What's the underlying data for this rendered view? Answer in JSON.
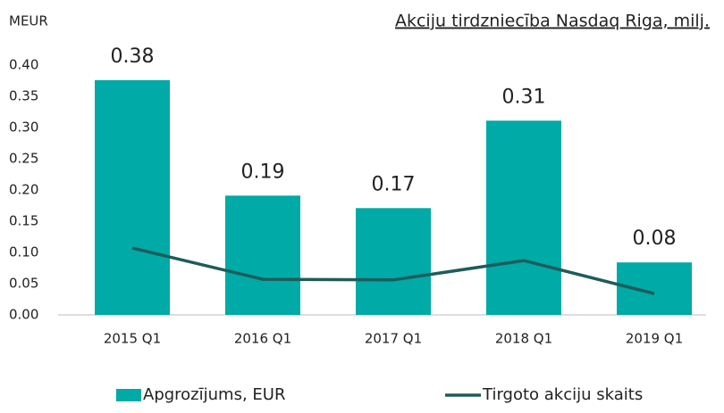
{
  "chart_data": {
    "type": "bar",
    "title": "Akciju tirdzniecība Nasdaq Riga, milj.",
    "y_label": "MEUR",
    "categories": [
      "2015 Q1",
      "2016 Q1",
      "2017 Q1",
      "2018 Q1",
      "2019 Q1"
    ],
    "series": [
      {
        "name": "Apgrozījums, EUR",
        "type": "bar",
        "color": "#00aaa6",
        "values": [
          0.376,
          0.191,
          0.171,
          0.311,
          0.084
        ],
        "value_labels": [
          "0.38",
          "0.19",
          "0.17",
          "0.31",
          "0.08"
        ]
      },
      {
        "name": "Tirgoto akciju skaits",
        "type": "line",
        "color": "#1f5c5c",
        "values": [
          0.107,
          0.057,
          0.056,
          0.087,
          0.034
        ]
      }
    ],
    "ylim": [
      0,
      0.4
    ],
    "yticks": [
      {
        "value": 0,
        "label": "0.00"
      },
      {
        "value": 0.05,
        "label": "0.05"
      },
      {
        "value": 0.1,
        "label": "0.10"
      },
      {
        "value": 0.15,
        "label": "0.15"
      },
      {
        "value": 0.2,
        "label": "0.20"
      },
      {
        "value": 0.25,
        "label": "0.25"
      },
      {
        "value": 0.3,
        "label": "0.30"
      },
      {
        "value": 0.35,
        "label": "0.35"
      },
      {
        "value": 0.4,
        "label": "0.40"
      }
    ],
    "legend": "bottom"
  }
}
